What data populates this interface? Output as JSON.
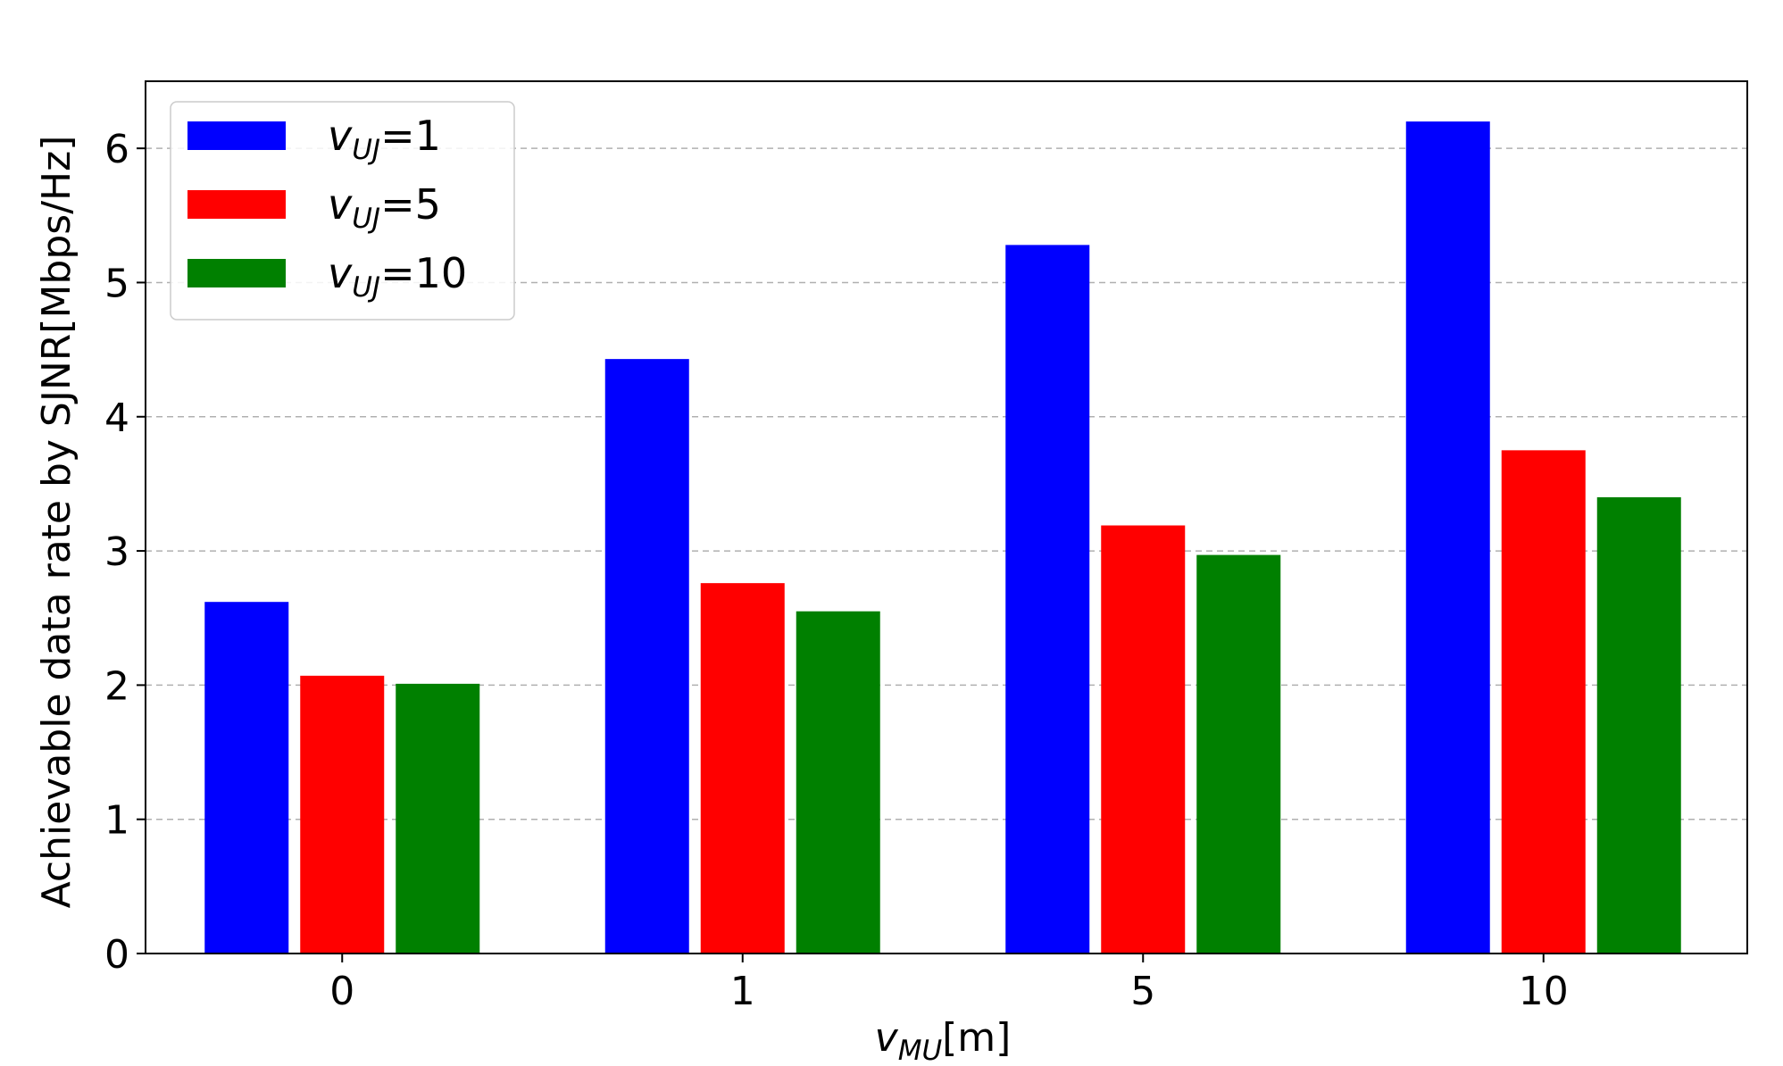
{
  "chart_data": {
    "type": "bar",
    "title": "",
    "xlabel": {
      "var": "v",
      "sub": "MU",
      "unit": "[m]"
    },
    "ylabel": "Achievable data rate by SJNR[Mbps/Hz]",
    "categories": [
      "0",
      "1",
      "5",
      "10"
    ],
    "ylim": [
      0,
      6.5
    ],
    "yticks": [
      0,
      1,
      2,
      3,
      4,
      5,
      6
    ],
    "grid": "y-dashed",
    "legend_position": "top-left",
    "series": [
      {
        "name": "v_UJ=1",
        "label_var": "v",
        "label_sub": "UJ",
        "label_eq": "=1",
        "color": "#0000ff",
        "values": [
          2.62,
          4.43,
          5.28,
          6.2
        ]
      },
      {
        "name": "v_UJ=5",
        "label_var": "v",
        "label_sub": "UJ",
        "label_eq": "=5",
        "color": "#ff0000",
        "values": [
          2.07,
          2.76,
          3.19,
          3.75
        ]
      },
      {
        "name": "v_UJ=10",
        "label_var": "v",
        "label_sub": "UJ",
        "label_eq": "=10",
        "color": "#008000",
        "values": [
          2.01,
          2.55,
          2.97,
          3.4
        ]
      }
    ]
  }
}
